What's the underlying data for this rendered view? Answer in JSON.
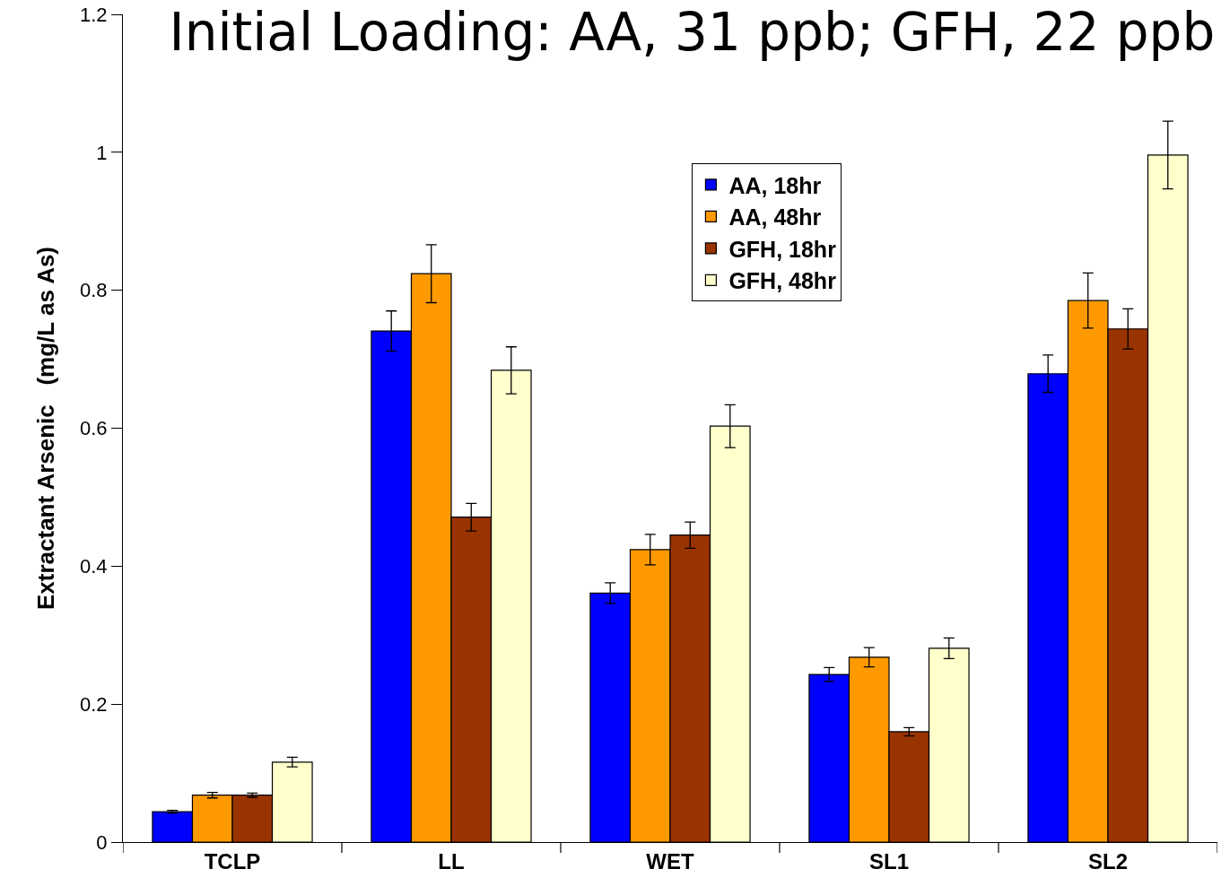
{
  "chart_data": {
    "type": "bar",
    "title": "Initial Loading: AA, 31 ppb; GFH, 22 ppb",
    "ylabel": "Extractant Arsenic   (mg/L as As)",
    "categories": [
      "TCLP",
      "LL",
      "WET",
      "SL1",
      "SL2"
    ],
    "series": [
      {
        "name": "AA, 18hr",
        "color": "#0000ff",
        "values": [
          0.044,
          0.741,
          0.361,
          0.243,
          0.679
        ],
        "errors": [
          0.002,
          0.029,
          0.015,
          0.01,
          0.027
        ]
      },
      {
        "name": "AA, 48hr",
        "color": "#ff9900",
        "values": [
          0.068,
          0.824,
          0.424,
          0.268,
          0.785
        ],
        "errors": [
          0.004,
          0.042,
          0.022,
          0.014,
          0.04
        ]
      },
      {
        "name": "GFH, 18hr",
        "color": "#993300",
        "values": [
          0.068,
          0.471,
          0.445,
          0.16,
          0.744
        ],
        "errors": [
          0.003,
          0.02,
          0.019,
          0.006,
          0.029
        ]
      },
      {
        "name": "GFH, 48hr",
        "color": "#ffffcc",
        "values": [
          0.116,
          0.684,
          0.603,
          0.281,
          0.996
        ],
        "errors": [
          0.007,
          0.034,
          0.031,
          0.015,
          0.049
        ]
      }
    ],
    "ylim": [
      0,
      1.2
    ],
    "yticks": [
      0,
      0.2,
      0.4,
      0.6,
      0.8,
      1,
      1.2
    ],
    "grid": false,
    "legend": "top right"
  }
}
